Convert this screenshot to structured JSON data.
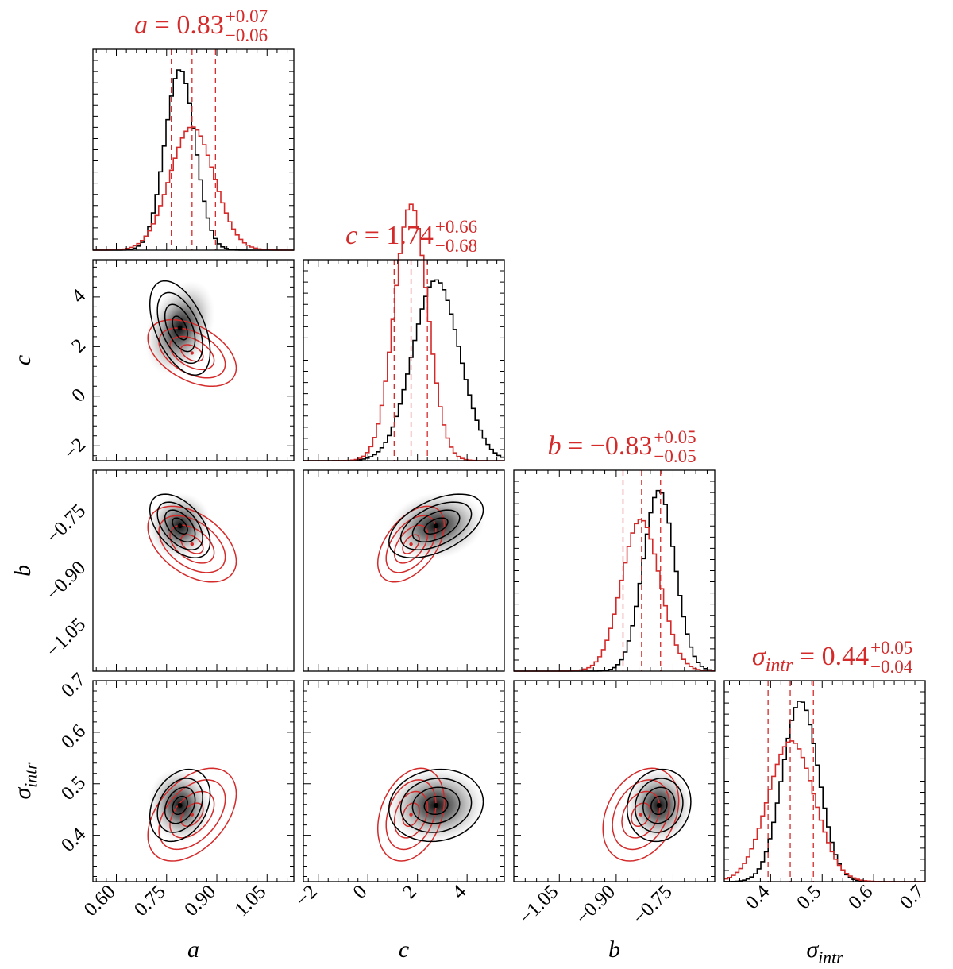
{
  "chart_data": {
    "type": "corner",
    "description_of_series": [
      "black",
      "red"
    ],
    "colors": {
      "black": "#000000",
      "red": "#d42a2a",
      "frame": "#000000"
    },
    "parameters": [
      {
        "key": "a",
        "label": "a",
        "ticks": [
          "0.60",
          "0.75",
          "0.90",
          "1.05"
        ],
        "tick_values": [
          0.6,
          0.75,
          0.9,
          1.05
        ],
        "range": [
          0.53,
          1.13
        ],
        "title": {
          "name": "a",
          "value": "0.83",
          "plus": "+0.07",
          "minus": "−0.06"
        },
        "quantiles": [
          0.764,
          0.826,
          0.896
        ],
        "black": {
          "mean": 0.79,
          "sd": 0.045
        },
        "red": {
          "mean": 0.826,
          "sd": 0.066
        }
      },
      {
        "key": "c",
        "label": "c",
        "ticks": [
          "−2",
          "0",
          "2",
          "4"
        ],
        "tick_values": [
          -2,
          0,
          2,
          4
        ],
        "range": [
          -2.6,
          5.5
        ],
        "title": {
          "name": "c",
          "value": "1.74",
          "plus": "+0.66",
          "minus": "−0.68"
        },
        "quantiles": [
          1.06,
          1.74,
          2.4
        ],
        "black": {
          "mean": 2.75,
          "sd": 0.95
        },
        "red": {
          "mean": 1.74,
          "sd": 0.67
        }
      },
      {
        "key": "b",
        "label": "b",
        "ticks": [
          "−1.05",
          "−0.90",
          "−0.75"
        ],
        "tick_values": [
          -1.05,
          -0.9,
          -0.75
        ],
        "range": [
          -1.17,
          -0.64
        ],
        "y_ticks": [
          "−0.75",
          "−0.90",
          "−1.05"
        ],
        "y_tick_values": [
          -0.75,
          -0.9,
          -1.05
        ],
        "title": {
          "name": "b",
          "value": "−0.83",
          "plus": "+0.05",
          "minus": "−0.05"
        },
        "quantiles": [
          -0.882,
          -0.833,
          -0.783
        ],
        "black": {
          "mean": -0.787,
          "sd": 0.042
        },
        "red": {
          "mean": -0.835,
          "sd": 0.05
        }
      },
      {
        "key": "sigma",
        "label": "σ_intr",
        "ticks": [
          "0.4",
          "0.5",
          "0.6",
          "0.7"
        ],
        "tick_values": [
          0.4,
          0.5,
          0.6,
          0.7
        ],
        "range": [
          0.31,
          0.7
        ],
        "y_ticks": [
          "0.4",
          "0.5",
          "0.6",
          "0.7"
        ],
        "y_tick_values": [
          0.4,
          0.5,
          0.6,
          0.7
        ],
        "title": {
          "name": "σ_intr",
          "value": "0.44",
          "plus": "+0.05",
          "minus": "−0.04"
        },
        "quantiles": [
          0.395,
          0.438,
          0.483
        ],
        "black": {
          "mean": 0.458,
          "sd": 0.035
        },
        "red": {
          "mean": 0.44,
          "sd": 0.045
        }
      }
    ],
    "correlations": {
      "a_c": {
        "black": -0.5,
        "red": -0.45
      },
      "a_b": {
        "black": -0.5,
        "red": -0.45
      },
      "a_sigma": {
        "black": 0.3,
        "red": 0.45
      },
      "c_b": {
        "black": 0.5,
        "red": 0.5
      },
      "c_sigma": {
        "black": 0.1,
        "red": 0.3
      },
      "b_sigma": {
        "black": 0.1,
        "red": 0.3
      }
    },
    "axis_labels": {
      "x": [
        "a",
        "c",
        "b",
        "σ_intr"
      ],
      "y": [
        "c",
        "b",
        "σ_intr"
      ]
    }
  }
}
